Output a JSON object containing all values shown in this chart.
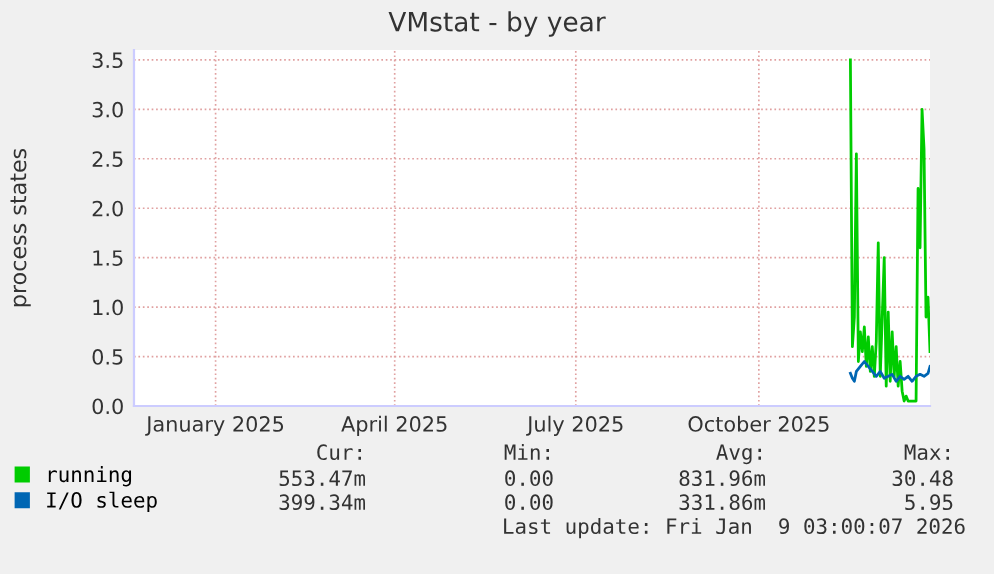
{
  "chart_data": {
    "type": "line",
    "title": "VMstat - by year",
    "ylabel": "process states",
    "xlim": [
      "2024-12-05",
      "2026-01-09"
    ],
    "ylim": [
      0,
      3.6
    ],
    "xticks": [
      {
        "value": "2025-01-15",
        "label": "January 2025"
      },
      {
        "value": "2025-04-15",
        "label": "April 2025"
      },
      {
        "value": "2025-07-15",
        "label": "July 2025"
      },
      {
        "value": "2025-10-15",
        "label": "October 2025"
      }
    ],
    "yticks": [
      {
        "value": 0,
        "label": "0.0"
      },
      {
        "value": 0.5,
        "label": "0.5"
      },
      {
        "value": 1,
        "label": "1.0"
      },
      {
        "value": 1.5,
        "label": "1.5"
      },
      {
        "value": 2,
        "label": "2.0"
      },
      {
        "value": 2.5,
        "label": "2.5"
      },
      {
        "value": 3,
        "label": "3.0"
      },
      {
        "value": 3.5,
        "label": "3.5"
      }
    ],
    "grid": true,
    "legend": "bottom",
    "marker": "none",
    "line_style": "solid",
    "series": [
      {
        "name": "running",
        "color": "#00cc00",
        "x": [
          "2025-11-30",
          "2025-12-01",
          "2025-12-02",
          "2025-12-03",
          "2025-12-04",
          "2025-12-05",
          "2025-12-06",
          "2025-12-07",
          "2025-12-08",
          "2025-12-09",
          "2025-12-10",
          "2025-12-11",
          "2025-12-12",
          "2025-12-13",
          "2025-12-14",
          "2025-12-15",
          "2025-12-16",
          "2025-12-17",
          "2025-12-18",
          "2025-12-19",
          "2025-12-20",
          "2025-12-21",
          "2025-12-22",
          "2025-12-23",
          "2025-12-24",
          "2025-12-25",
          "2025-12-26",
          "2025-12-27",
          "2025-12-28",
          "2025-12-29",
          "2025-12-30",
          "2025-12-31",
          "2026-01-01",
          "2026-01-02",
          "2026-01-03",
          "2026-01-04",
          "2026-01-05",
          "2026-01-06",
          "2026-01-07",
          "2026-01-08",
          "2026-01-09"
        ],
        "values": [
          3.5,
          0.6,
          0.9,
          2.55,
          0.45,
          0.75,
          0.55,
          0.8,
          0.4,
          0.7,
          0.35,
          0.6,
          0.3,
          0.65,
          1.65,
          0.3,
          0.9,
          1.5,
          0.2,
          0.95,
          0.25,
          0.75,
          0.3,
          0.6,
          0.2,
          0.45,
          0.15,
          0.05,
          0.1,
          0.05,
          0.05,
          0.05,
          0.05,
          0.05,
          2.2,
          1.6,
          3.0,
          2.6,
          0.9,
          1.1,
          0.55
        ]
      },
      {
        "name": "I/O sleep",
        "color": "#0066b3",
        "x": [
          "2025-11-30",
          "2025-12-01",
          "2025-12-02",
          "2025-12-03",
          "2025-12-05",
          "2025-12-07",
          "2025-12-09",
          "2025-12-11",
          "2025-12-13",
          "2025-12-15",
          "2025-12-17",
          "2025-12-19",
          "2025-12-21",
          "2025-12-23",
          "2025-12-25",
          "2025-12-27",
          "2025-12-29",
          "2025-12-31",
          "2026-01-02",
          "2026-01-04",
          "2026-01-06",
          "2026-01-08",
          "2026-01-09"
        ],
        "values": [
          0.33,
          0.28,
          0.25,
          0.35,
          0.4,
          0.45,
          0.4,
          0.35,
          0.3,
          0.35,
          0.28,
          0.3,
          0.32,
          0.25,
          0.3,
          0.27,
          0.3,
          0.25,
          0.3,
          0.32,
          0.3,
          0.33,
          0.4
        ]
      }
    ],
    "annotations": [
      "Cur:",
      "Min:",
      "Avg:",
      "Max:",
      "553.47m",
      "0.00",
      "831.96m",
      "30.48",
      "399.34m",
      "0.00",
      "331.86m",
      "5.95",
      "Last update: Fri Jan  9 03:00:07 2026"
    ]
  }
}
